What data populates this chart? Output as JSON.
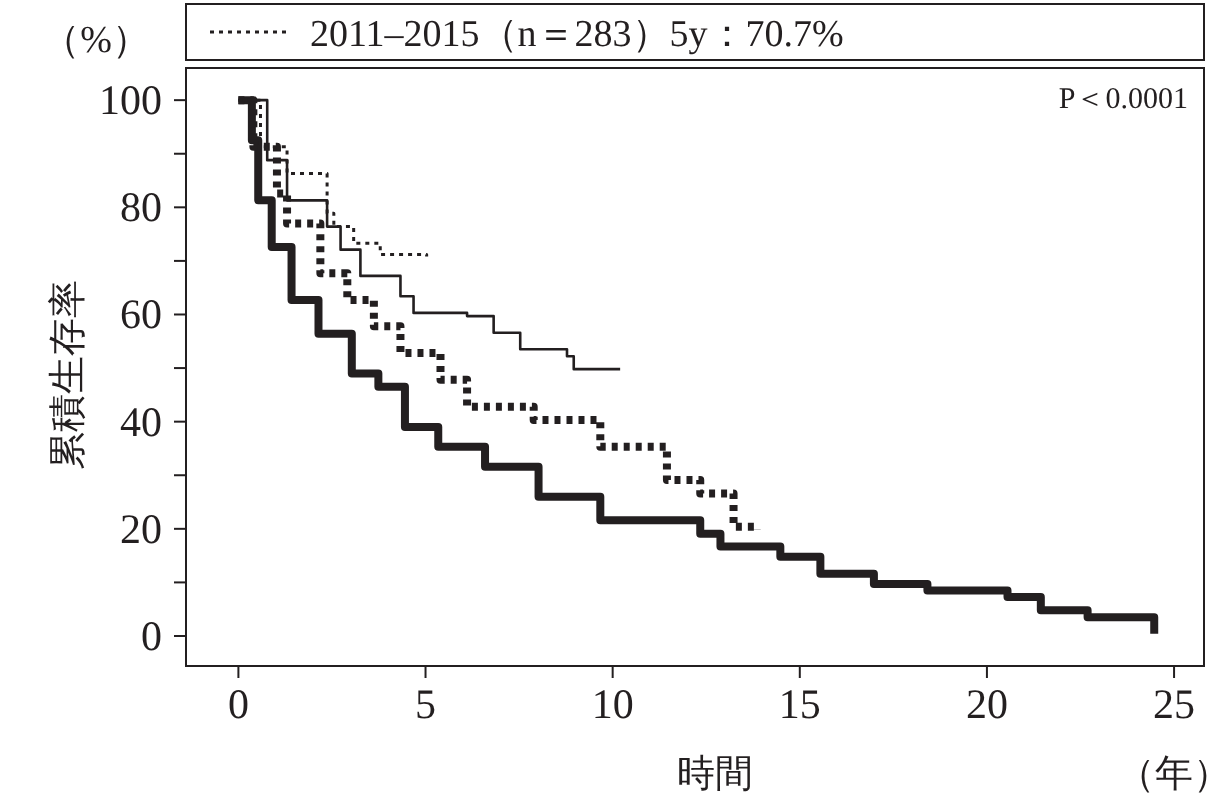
{
  "chart_data": {
    "type": "step",
    "xlabel": "時間",
    "ylabel": "累積生存率",
    "annotations": [
      "P＜0.0001",
      "（%）",
      "（年）"
    ],
    "xlim": [
      -1.4,
      25.8
    ],
    "ylim": [
      -5.6,
      106
    ],
    "xticks": [
      0,
      5,
      10,
      15,
      20,
      25
    ],
    "yticks": [
      0,
      {
        "value": 10,
        "label": null
      },
      20,
      {
        "value": 30,
        "label": null
      },
      40,
      {
        "value": 50,
        "label": null
      },
      60,
      {
        "value": 70,
        "label": null
      },
      80,
      {
        "value": 90,
        "label": null
      },
      100
    ],
    "legend": "top",
    "grid": false,
    "series": [
      {
        "color": "#231f20",
        "line_style": "solid",
        "x": [
          0,
          0.36,
          0.53,
          0.89,
          1.42,
          2.14,
          3.03,
          3.74,
          4.45,
          5.34,
          6.59,
          8.02,
          9.67,
          12.34,
          12.88,
          14.48,
          15.55,
          16.98,
          18.41,
          20.55,
          21.44,
          22.69,
          24.47
        ],
        "values": [
          100,
          92.5,
          81.3,
          72.6,
          62.7,
          56.4,
          49.0,
          46.5,
          39.0,
          35.3,
          31.6,
          26.0,
          21.6,
          19.1,
          16.7,
          14.8,
          11.6,
          9.7,
          8.5,
          7.3,
          4.8,
          3.5,
          0.4
        ]
      },
      {
        "color": "#231f20",
        "line_style": "dotted",
        "x": [
          0,
          0.4,
          1.03,
          1.3,
          2.19,
          2.91,
          3.62,
          4.33,
          5.4,
          6.11,
          7.89,
          9.67,
          11.45,
          12.34,
          13.23,
          13.85
        ],
        "values": [
          100,
          91.3,
          82.6,
          77.0,
          67.7,
          62.7,
          57.8,
          52.8,
          47.8,
          42.8,
          40.3,
          35.3,
          29.1,
          26.6,
          20.4,
          19.8
        ]
      },
      {
        "color": "#231f20",
        "line_style": "solid",
        "x": [
          0,
          0.77,
          1.3,
          2.37,
          2.73,
          3.26,
          4.33,
          4.68,
          6.11,
          6.82,
          7.53,
          8.78,
          8.96,
          10.2
        ],
        "values": [
          100,
          88.8,
          81.3,
          76.4,
          72.1,
          67.2,
          63.4,
          60.3,
          59.7,
          56.6,
          53.5,
          52.2,
          49.8,
          49.8
        ]
      },
      {
        "name": "2011–2015（n＝283）5y：70.7%",
        "color": "#231f20",
        "line_style": "dotted",
        "x": [
          0,
          0.59,
          1.3,
          2.37,
          2.55,
          3.08,
          3.79,
          5.03
        ],
        "values": [
          100,
          91.3,
          86.3,
          78.9,
          76.4,
          73.3,
          71.2,
          70.8
        ]
      }
    ]
  }
}
